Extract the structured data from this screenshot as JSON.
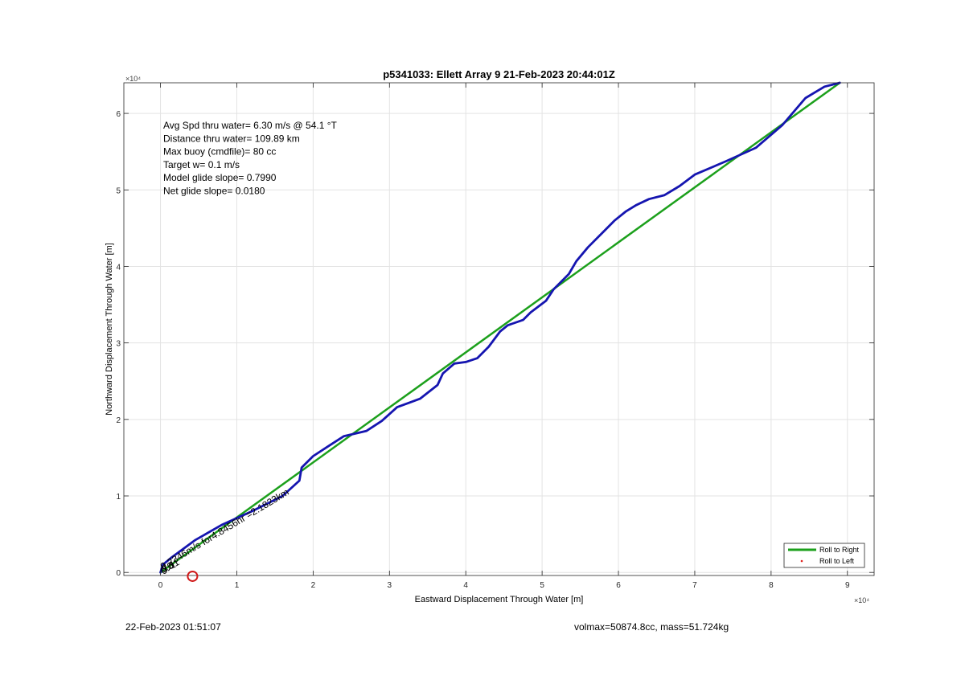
{
  "chart_data": {
    "type": "line",
    "title": "p5341033: Ellett Array 9 21-Feb-2023 20:44:01Z",
    "xlabel": "Eastward Displacement Through Water [m]",
    "ylabel": "Northward Displacement Through Water [m]",
    "x_exponent": "×10⁴",
    "y_exponent": "×10⁴",
    "xlim": [
      -4800,
      93500
    ],
    "ylim": [
      -400,
      64000
    ],
    "xticks": [
      0,
      10000,
      20000,
      30000,
      40000,
      50000,
      60000,
      70000,
      80000,
      90000
    ],
    "xtick_labels": [
      "0",
      "1",
      "2",
      "3",
      "4",
      "5",
      "6",
      "7",
      "8",
      "9"
    ],
    "yticks": [
      0,
      10000,
      20000,
      30000,
      40000,
      50000,
      60000
    ],
    "ytick_labels": [
      "0",
      "1",
      "2",
      "3",
      "4",
      "5",
      "6"
    ],
    "grid": true,
    "legend_position": "bottom-right",
    "legend": [
      {
        "label": "Roll to Right",
        "color": "#1ca01c",
        "style": "line"
      },
      {
        "label": "Roll to Left",
        "color": "#e0201c",
        "style": "dot"
      }
    ],
    "series": [
      {
        "name": "Roll to Right",
        "color": "#1ca01c",
        "x": [
          0,
          89000
        ],
        "y": [
          0,
          64000
        ]
      },
      {
        "color": "#1515b0",
        "x": [
          0,
          300,
          1500,
          4500,
          8000,
          12000,
          16000,
          18200,
          18500,
          20000,
          22000,
          24000,
          27000,
          29000,
          31000,
          34000,
          36300,
          37000,
          38500,
          40000,
          41500,
          43000,
          44500,
          45500,
          47500,
          48500,
          50500,
          51500,
          53500,
          54500,
          56000,
          58000,
          59500,
          61000,
          62300,
          64000,
          66000,
          68000,
          70000,
          74000,
          78000,
          81500,
          84500,
          87000,
          89000
        ],
        "y": [
          0,
          1000,
          2000,
          4200,
          6200,
          8000,
          10000,
          12000,
          13700,
          15200,
          16500,
          17800,
          18500,
          19800,
          21600,
          22700,
          24500,
          26000,
          27300,
          27500,
          28000,
          29500,
          31500,
          32300,
          33000,
          34000,
          35500,
          37000,
          39000,
          40700,
          42500,
          44500,
          46000,
          47200,
          48000,
          48800,
          49300,
          50500,
          52000,
          53700,
          55500,
          58500,
          62000,
          63500,
          64000
        ]
      }
    ],
    "annotations": [
      {
        "text": "Avg Spd thru water=  6.30 m/s @  54.1 °T"
      },
      {
        "text": "Distance thru water= 109.89 km"
      },
      {
        "text": "Max buoy (cmdfile)= 80 cc"
      },
      {
        "text": "Target w= 0.1 m/s"
      },
      {
        "text": "Model glide slope= 0.7990"
      },
      {
        "text": "Net glide slope= 0.0180"
      }
    ],
    "track_label": {
      "text": "0.2346m/s for4.8456hr =2.1823km",
      "x": 0,
      "y": 0,
      "angle_deg": -31
    },
    "track_label_overlap": [
      "0.0",
      "0.01",
      "1.1"
    ],
    "marker": {
      "x": 4200,
      "y": -500,
      "shape": "circle",
      "color": "#d01818"
    }
  },
  "footer": {
    "timestamp": "22-Feb-2023 01:51:07",
    "stats": "volmax=50874.8cc, mass=51.724kg"
  }
}
